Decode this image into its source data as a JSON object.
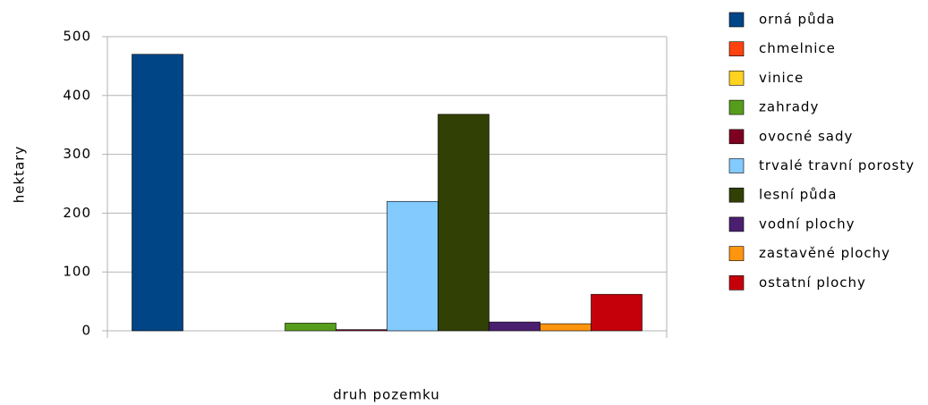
{
  "chart_data": {
    "type": "bar",
    "x_label": "druh pozemku",
    "y_label": "hektary",
    "categories": [
      null
    ],
    "series": [
      {
        "name": "orná půda",
        "color": "#004586",
        "values": [
          470
        ]
      },
      {
        "name": "chmelnice",
        "color": "#ff420e",
        "values": [
          0
        ]
      },
      {
        "name": "vinice",
        "color": "#ffd320",
        "values": [
          0
        ]
      },
      {
        "name": "zahrady",
        "color": "#579d1c",
        "values": [
          13
        ]
      },
      {
        "name": "ovocné sady",
        "color": "#7e0021",
        "values": [
          2
        ]
      },
      {
        "name": "trvalé travní porosty",
        "color": "#83caff",
        "values": [
          220
        ]
      },
      {
        "name": "lesní půda",
        "color": "#314004",
        "values": [
          368
        ]
      },
      {
        "name": "vodní plochy",
        "color": "#4b1f6f",
        "values": [
          15
        ]
      },
      {
        "name": "zastavěné plochy",
        "color": "#ff950e",
        "values": [
          12
        ]
      },
      {
        "name": "ostatní plochy",
        "color": "#c5000b",
        "values": [
          62
        ]
      }
    ],
    "ylim": [
      0,
      500
    ],
    "yticks": [
      0,
      100,
      200,
      300,
      400,
      500
    ],
    "grid": true,
    "legend": "right"
  }
}
